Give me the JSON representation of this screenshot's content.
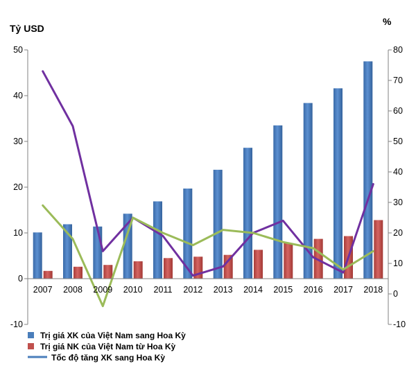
{
  "chart_data": {
    "type": "bar",
    "categories": [
      "2007",
      "2008",
      "2009",
      "2010",
      "2011",
      "2012",
      "2013",
      "2014",
      "2015",
      "2016",
      "2017",
      "2018"
    ],
    "left_axis": {
      "unit_label": "Tỷ USD",
      "ylim": [
        -10,
        50
      ],
      "ticks": [
        "-10",
        "0",
        "10",
        "20",
        "30",
        "40",
        "50"
      ]
    },
    "right_axis": {
      "unit_label": "%",
      "ylim": [
        -10,
        80
      ],
      "ticks": [
        "-10",
        "0",
        "10",
        "20",
        "30",
        "40",
        "50",
        "60",
        "70",
        "80"
      ]
    },
    "series": [
      {
        "name": "Trị giá XK của Việt Nam  sang Hoa Kỳ",
        "kind": "bar",
        "axis": "left",
        "color": "#4a7ebb",
        "values": [
          10.1,
          11.9,
          11.4,
          14.2,
          16.9,
          19.7,
          23.8,
          28.6,
          33.5,
          38.4,
          41.6,
          47.5
        ]
      },
      {
        "name": "Trị giá NK của Việt Nam từ Hoa Kỳ",
        "kind": "bar",
        "axis": "left",
        "color": "#c0504d",
        "values": [
          1.7,
          2.6,
          3.0,
          3.8,
          4.5,
          4.8,
          5.2,
          6.3,
          7.8,
          8.7,
          9.3,
          12.8
        ]
      },
      {
        "name": "Tốc độ tăng XK sang Hoa Kỳ",
        "kind": "line",
        "axis": "right",
        "color": "#7030a0",
        "values": [
          73,
          55,
          14,
          25,
          19,
          6,
          9,
          20,
          24,
          12,
          7,
          36
        ]
      },
      {
        "name": "",
        "kind": "line",
        "axis": "right",
        "color": "#9bbb59",
        "values": [
          29,
          18,
          -4,
          25,
          20,
          16,
          21,
          20,
          17,
          15,
          8,
          14
        ]
      }
    ],
    "grid": false,
    "legend_position": "bottom-left"
  }
}
